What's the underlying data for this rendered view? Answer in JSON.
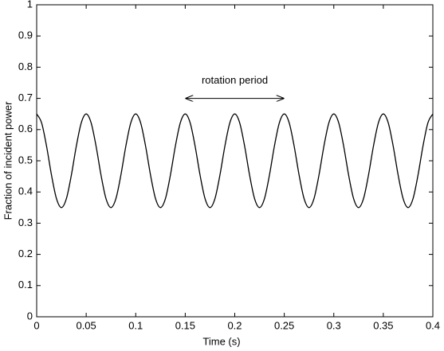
{
  "chart_data": {
    "type": "line",
    "xlabel": "Time (s)",
    "ylabel": "Fraction of incident power",
    "x": [
      0,
      0.005,
      0.01,
      0.015,
      0.02,
      0.025,
      0.03,
      0.035,
      0.04,
      0.045,
      0.05,
      0.055,
      0.06,
      0.065,
      0.07,
      0.075,
      0.08,
      0.085,
      0.09,
      0.095,
      0.1,
      0.105,
      0.11,
      0.115,
      0.12,
      0.125,
      0.13,
      0.135,
      0.14,
      0.145,
      0.15,
      0.155,
      0.16,
      0.165,
      0.17,
      0.175,
      0.18,
      0.185,
      0.19,
      0.195,
      0.2,
      0.205,
      0.21,
      0.215,
      0.22,
      0.225,
      0.23,
      0.235,
      0.24,
      0.245,
      0.25,
      0.255,
      0.26,
      0.265,
      0.27,
      0.275,
      0.28,
      0.285,
      0.29,
      0.295,
      0.3,
      0.305,
      0.31,
      0.315,
      0.32,
      0.325,
      0.33,
      0.335,
      0.34,
      0.345,
      0.35,
      0.355,
      0.36,
      0.365,
      0.37,
      0.375,
      0.38,
      0.385,
      0.39,
      0.395,
      0.4
    ],
    "series": [
      {
        "color": "#000000",
        "values": [
          0.65,
          0.6214,
          0.5464,
          0.4536,
          0.3786,
          0.35,
          0.3786,
          0.4536,
          0.5464,
          0.6214,
          0.65,
          0.6214,
          0.5464,
          0.4536,
          0.3786,
          0.35,
          0.3786,
          0.4536,
          0.5464,
          0.6214,
          0.65,
          0.6214,
          0.5464,
          0.4536,
          0.3786,
          0.35,
          0.3786,
          0.4536,
          0.5464,
          0.6214,
          0.65,
          0.6214,
          0.5464,
          0.4536,
          0.3786,
          0.35,
          0.3786,
          0.4536,
          0.5464,
          0.6214,
          0.65,
          0.6214,
          0.5464,
          0.4536,
          0.3786,
          0.35,
          0.3786,
          0.4536,
          0.5464,
          0.6214,
          0.65,
          0.6214,
          0.5464,
          0.4536,
          0.3786,
          0.35,
          0.3786,
          0.4536,
          0.5464,
          0.6214,
          0.65,
          0.6214,
          0.5464,
          0.4536,
          0.3786,
          0.35,
          0.3786,
          0.4536,
          0.5464,
          0.6214,
          0.65,
          0.6214,
          0.5464,
          0.4536,
          0.3786,
          0.35,
          0.3786,
          0.4536,
          0.5464,
          0.6214,
          0.65
        ]
      }
    ],
    "xlim": [
      0,
      0.4
    ],
    "xticks": [
      0,
      0.05,
      0.1,
      0.15,
      0.2,
      0.25,
      0.3,
      0.35,
      0.4
    ],
    "ylim": [
      0,
      1
    ],
    "yticks": [
      0,
      0.1,
      0.2,
      0.3,
      0.4,
      0.5,
      0.6,
      0.7,
      0.8,
      0.9,
      1
    ],
    "grid": false,
    "annotations": [
      {
        "text": "rotation period",
        "x": [
          0.15,
          0.25
        ],
        "y": 0.7
      }
    ]
  }
}
